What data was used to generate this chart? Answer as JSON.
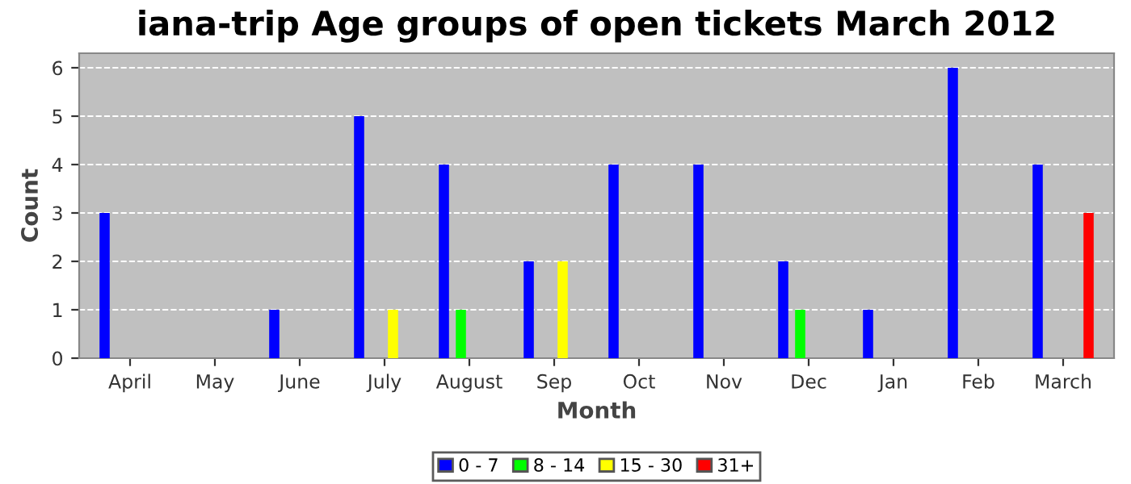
{
  "chart_data": {
    "type": "bar",
    "title": "iana-trip Age groups of open tickets March 2012",
    "xlabel": "Month",
    "ylabel": "Count",
    "categories": [
      "April",
      "May",
      "June",
      "July",
      "August",
      "Sep",
      "Oct",
      "Nov",
      "Dec",
      "Jan",
      "Feb",
      "March"
    ],
    "series": [
      {
        "name": "0 - 7",
        "color": "#0000ff",
        "values": [
          3,
          0,
          1,
          5,
          4,
          2,
          4,
          4,
          2,
          1,
          6,
          4
        ]
      },
      {
        "name": "8 - 14",
        "color": "#00ff00",
        "values": [
          0,
          0,
          0,
          0,
          1,
          0,
          0,
          0,
          1,
          0,
          0,
          0
        ]
      },
      {
        "name": "15 - 30",
        "color": "#ffff00",
        "values": [
          0,
          0,
          0,
          1,
          0,
          2,
          0,
          0,
          0,
          0,
          0,
          0
        ]
      },
      {
        "name": "31+",
        "color": "#ff0000",
        "values": [
          0,
          0,
          0,
          0,
          0,
          0,
          0,
          0,
          0,
          0,
          0,
          3
        ]
      }
    ],
    "ylim": [
      0,
      6.3
    ],
    "yticks": [
      0,
      1,
      2,
      3,
      4,
      5,
      6
    ],
    "grid": "y",
    "legend": "bottom"
  }
}
